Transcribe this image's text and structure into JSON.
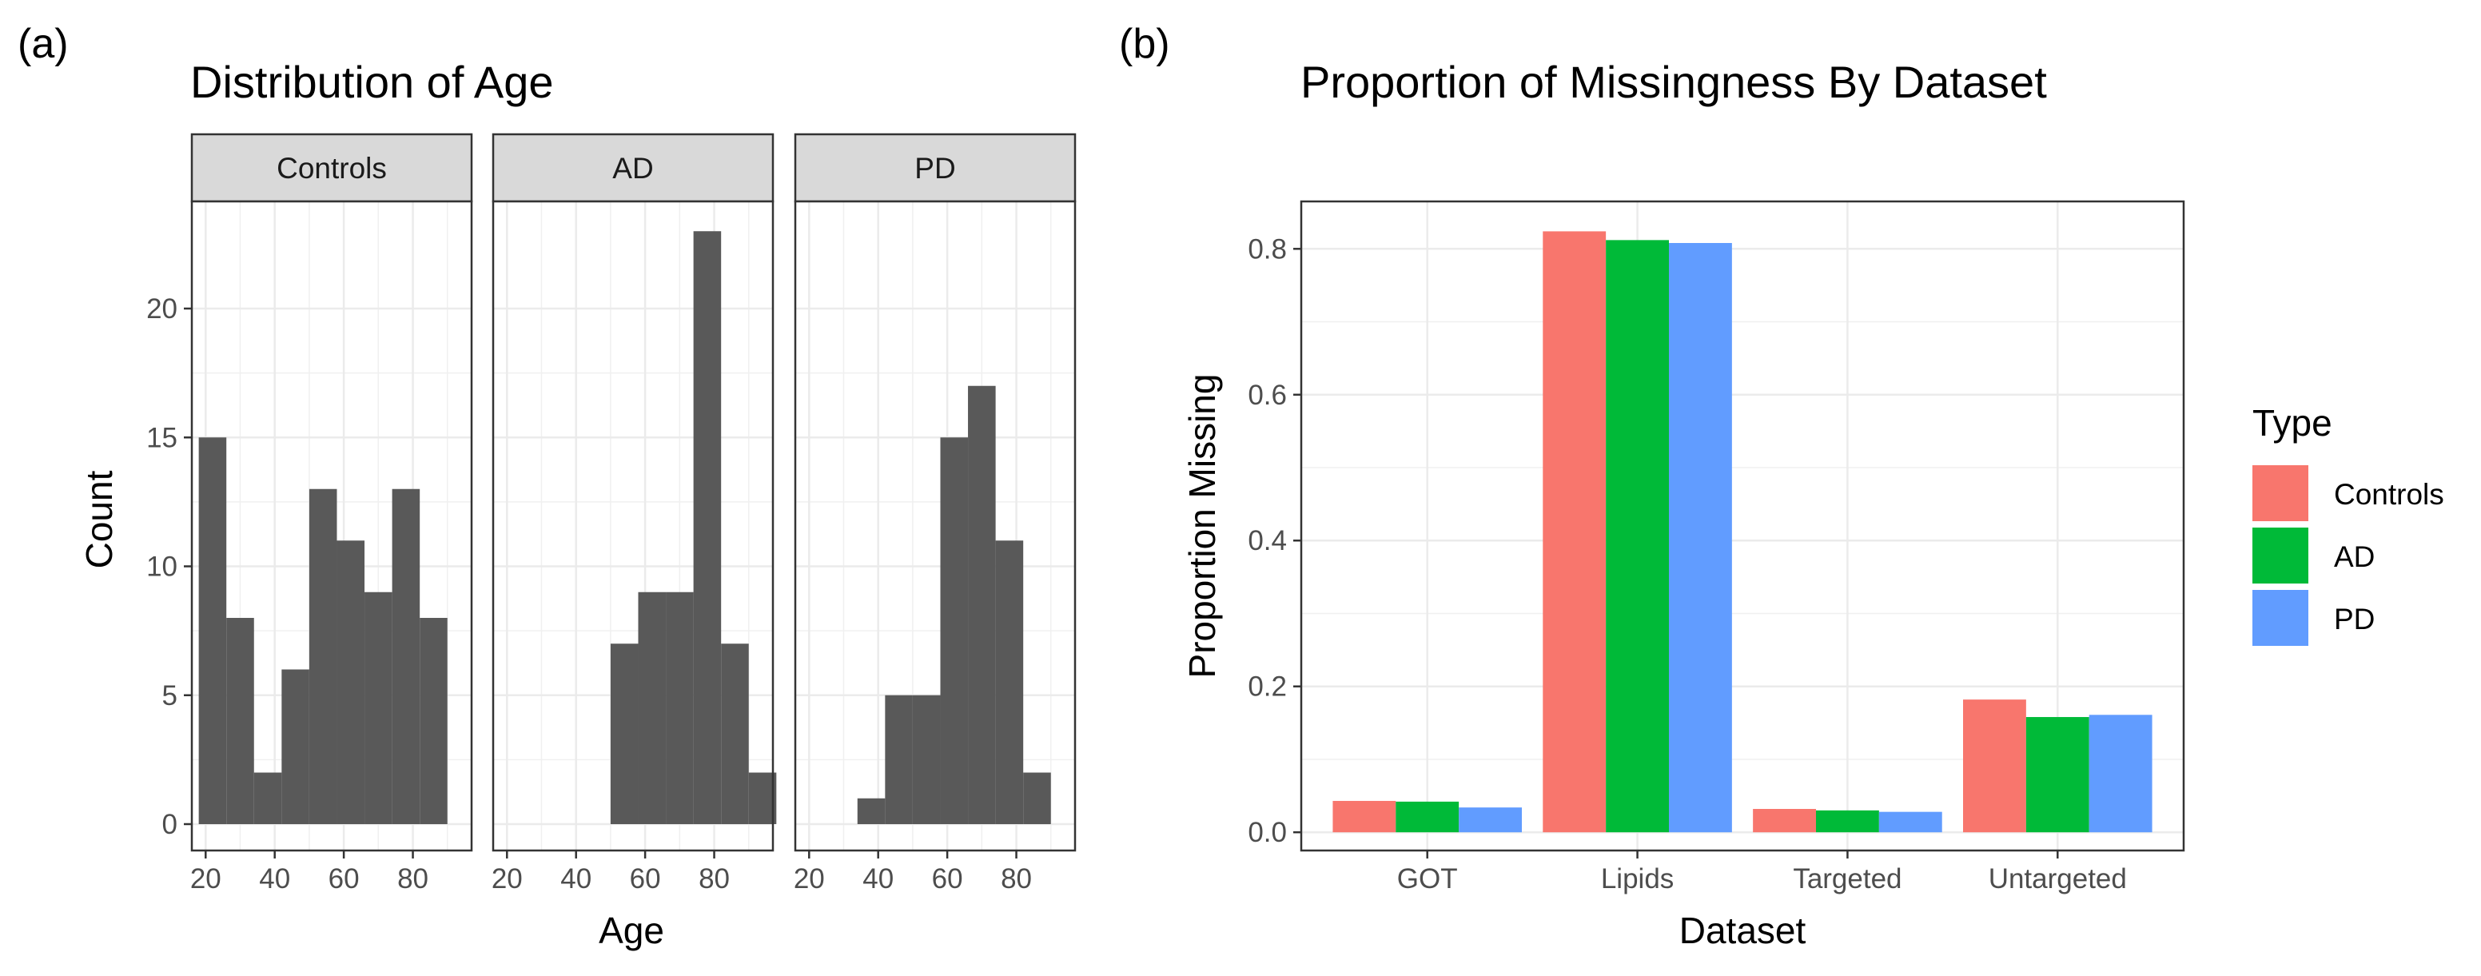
{
  "chart_data": [
    {
      "panel_label": "(a)",
      "type": "bar",
      "subtype": "faceted-histogram",
      "title": "Distribution of Age",
      "xlabel": "Age",
      "ylabel": "Count",
      "bin_width": 8,
      "x_ticks": [
        "20",
        "40",
        "60",
        "80"
      ],
      "y_ticks": [
        "0",
        "5",
        "10",
        "15",
        "20"
      ],
      "xlim": [
        16,
        97
      ],
      "ylim": [
        0,
        24
      ],
      "grid": true,
      "bar_color": "#595959",
      "facets": [
        {
          "name": "Controls",
          "bins": [
            {
              "x0": 18,
              "x1": 26,
              "count": 15
            },
            {
              "x0": 26,
              "x1": 34,
              "count": 8
            },
            {
              "x0": 34,
              "x1": 42,
              "count": 2
            },
            {
              "x0": 42,
              "x1": 50,
              "count": 6
            },
            {
              "x0": 50,
              "x1": 58,
              "count": 13
            },
            {
              "x0": 58,
              "x1": 66,
              "count": 11
            },
            {
              "x0": 66,
              "x1": 74,
              "count": 9
            },
            {
              "x0": 74,
              "x1": 82,
              "count": 13
            },
            {
              "x0": 82,
              "x1": 90,
              "count": 8
            }
          ]
        },
        {
          "name": "AD",
          "bins": [
            {
              "x0": 50,
              "x1": 58,
              "count": 7
            },
            {
              "x0": 58,
              "x1": 66,
              "count": 9
            },
            {
              "x0": 66,
              "x1": 74,
              "count": 9
            },
            {
              "x0": 74,
              "x1": 82,
              "count": 23
            },
            {
              "x0": 82,
              "x1": 90,
              "count": 7
            },
            {
              "x0": 90,
              "x1": 98,
              "count": 2
            }
          ]
        },
        {
          "name": "PD",
          "bins": [
            {
              "x0": 34,
              "x1": 42,
              "count": 1
            },
            {
              "x0": 42,
              "x1": 50,
              "count": 5
            },
            {
              "x0": 50,
              "x1": 58,
              "count": 5
            },
            {
              "x0": 58,
              "x1": 66,
              "count": 15
            },
            {
              "x0": 66,
              "x1": 74,
              "count": 17
            },
            {
              "x0": 74,
              "x1": 82,
              "count": 11
            },
            {
              "x0": 82,
              "x1": 90,
              "count": 2
            }
          ]
        }
      ]
    },
    {
      "panel_label": "(b)",
      "type": "bar",
      "subtype": "grouped",
      "title": "Proportion of Missingness By Dataset",
      "xlabel": "Dataset",
      "ylabel": "Proportion Missing",
      "categories": [
        "GOT",
        "Lipids",
        "Targeted",
        "Untargeted"
      ],
      "y_ticks": [
        "0.0",
        "0.2",
        "0.4",
        "0.6",
        "0.8"
      ],
      "ylim": [
        -0.025,
        0.865
      ],
      "grid": true,
      "legend": {
        "title": "Type",
        "position": "right"
      },
      "series": [
        {
          "name": "Controls",
          "color": "#F8766D",
          "values": [
            0.043,
            0.824,
            0.032,
            0.182
          ]
        },
        {
          "name": "AD",
          "color": "#00BA38",
          "values": [
            0.042,
            0.812,
            0.03,
            0.158
          ]
        },
        {
          "name": "PD",
          "color": "#619CFF",
          "values": [
            0.034,
            0.808,
            0.028,
            0.161
          ]
        }
      ]
    }
  ]
}
